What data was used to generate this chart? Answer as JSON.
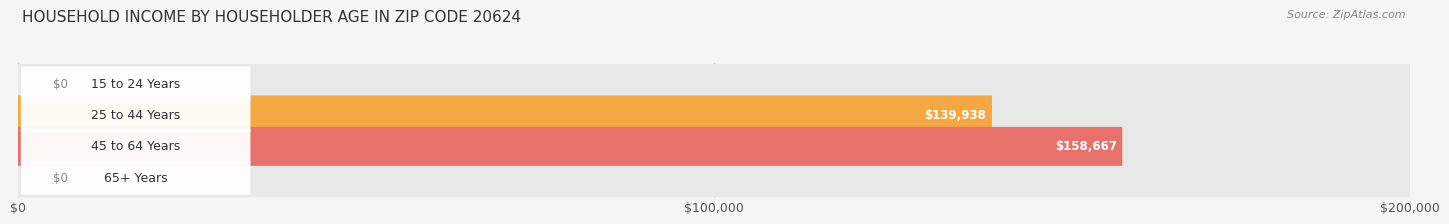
{
  "title": "HOUSEHOLD INCOME BY HOUSEHOLDER AGE IN ZIP CODE 20624",
  "source": "Source: ZipAtlas.com",
  "categories": [
    "15 to 24 Years",
    "25 to 44 Years",
    "45 to 64 Years",
    "65+ Years"
  ],
  "values": [
    0,
    139938,
    158667,
    0
  ],
  "bar_colors": [
    "#f4a0b0",
    "#f5a742",
    "#e8726a",
    "#a8c0e0"
  ],
  "label_colors": [
    "#888888",
    "#ffffff",
    "#ffffff",
    "#888888"
  ],
  "xlim": [
    0,
    200000
  ],
  "xtick_labels": [
    "$0",
    "$100,000",
    "$200,000"
  ],
  "background_color": "#f5f5f5",
  "bar_background_color": "#e8e8e8",
  "bar_height": 0.62,
  "value_labels": [
    "$0",
    "$139,938",
    "$158,667",
    "$0"
  ],
  "label_bg_color": "#ffffff"
}
